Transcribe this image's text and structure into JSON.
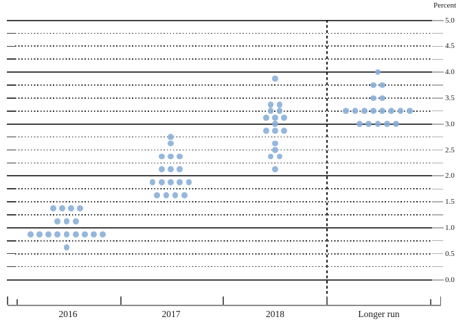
{
  "chart_data": {
    "type": "scatter",
    "subtype": "fomc-dot-plot",
    "title": "",
    "ylabel": "Percent",
    "ylim": [
      0.0,
      5.0
    ],
    "gridline_step": 0.25,
    "solid_gridlines_at_integers": true,
    "legend": "none",
    "y_axis_labels": [
      "5.0",
      "4.5",
      "4.0",
      "3.5",
      "3.0",
      "2.5",
      "2.0",
      "1.5",
      "1.0",
      "0.5",
      "0.0"
    ],
    "y_axis_label_values": [
      5.0,
      4.5,
      4.0,
      3.5,
      3.0,
      2.5,
      2.0,
      1.5,
      1.0,
      0.5,
      0.0
    ],
    "categories": [
      "2016",
      "2017",
      "2018",
      "Longer run"
    ],
    "dashed_separator_before_category": "Longer run",
    "dot_color": "#87add7",
    "series": [
      {
        "name": "2016",
        "dots": [
          {
            "value": 1.375,
            "count": 4
          },
          {
            "value": 1.125,
            "count": 3
          },
          {
            "value": 0.875,
            "count": 9
          },
          {
            "value": 0.625,
            "count": 1
          }
        ]
      },
      {
        "name": "2017",
        "dots": [
          {
            "value": 2.75,
            "count": 1
          },
          {
            "value": 2.625,
            "count": 1
          },
          {
            "value": 2.375,
            "count": 3
          },
          {
            "value": 2.125,
            "count": 3
          },
          {
            "value": 1.875,
            "count": 5
          },
          {
            "value": 1.625,
            "count": 4
          }
        ]
      },
      {
        "name": "2018",
        "dots": [
          {
            "value": 3.875,
            "count": 1
          },
          {
            "value": 3.375,
            "count": 2
          },
          {
            "value": 3.25,
            "count": 2
          },
          {
            "value": 3.125,
            "count": 3
          },
          {
            "value": 3.0,
            "count": 1
          },
          {
            "value": 2.875,
            "count": 3
          },
          {
            "value": 2.625,
            "count": 1
          },
          {
            "value": 2.5,
            "count": 1
          },
          {
            "value": 2.375,
            "count": 2
          },
          {
            "value": 2.125,
            "count": 1
          }
        ]
      },
      {
        "name": "Longer run",
        "dots": [
          {
            "value": 4.0,
            "count": 1
          },
          {
            "value": 3.75,
            "count": 2
          },
          {
            "value": 3.5,
            "count": 2
          },
          {
            "value": 3.25,
            "count": 8
          },
          {
            "value": 3.0,
            "count": 5
          }
        ]
      }
    ]
  }
}
